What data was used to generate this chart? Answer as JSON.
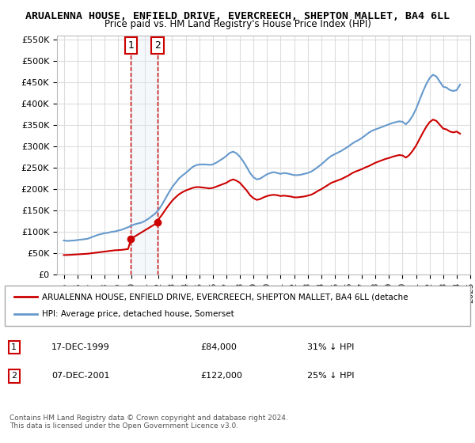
{
  "title": "ARUALENNA HOUSE, ENFIELD DRIVE, EVERCREECH, SHEPTON MALLET, BA4 6LL",
  "subtitle": "Price paid vs. HM Land Registry's House Price Index (HPI)",
  "ylim": [
    0,
    560000
  ],
  "yticks": [
    0,
    50000,
    100000,
    150000,
    200000,
    250000,
    300000,
    350000,
    400000,
    450000,
    500000,
    550000
  ],
  "ytick_labels": [
    "£0",
    "£50K",
    "£100K",
    "£150K",
    "£200K",
    "£250K",
    "£300K",
    "£350K",
    "£400K",
    "£450K",
    "£500K",
    "£550K"
  ],
  "legend_label_red": "ARUALENNA HOUSE, ENFIELD DRIVE, EVERCREECH, SHEPTON MALLET, BA4 6LL (detache",
  "legend_label_blue": "HPI: Average price, detached house, Somerset",
  "footer_text": "Contains HM Land Registry data © Crown copyright and database right 2024.\nThis data is licensed under the Open Government Licence v3.0.",
  "transaction1_label": "1",
  "transaction1_date": "17-DEC-1999",
  "transaction1_price": "£84,000",
  "transaction1_hpi": "31% ↓ HPI",
  "transaction1_year": 1999.96,
  "transaction1_value": 84000,
  "transaction2_label": "2",
  "transaction2_date": "07-DEC-2001",
  "transaction2_price": "£122,000",
  "transaction2_hpi": "25% ↓ HPI",
  "transaction2_year": 2001.93,
  "transaction2_value": 122000,
  "red_color": "#cc0000",
  "blue_color": "#6699cc",
  "box_fill": "#dde8f5",
  "box_border": "#cc0000",
  "grid_color": "#dddddd",
  "hpi_data": {
    "years": [
      1995.0,
      1995.25,
      1995.5,
      1995.75,
      1996.0,
      1996.25,
      1996.5,
      1996.75,
      1997.0,
      1997.25,
      1997.5,
      1997.75,
      1998.0,
      1998.25,
      1998.5,
      1998.75,
      1999.0,
      1999.25,
      1999.5,
      1999.75,
      2000.0,
      2000.25,
      2000.5,
      2000.75,
      2001.0,
      2001.25,
      2001.5,
      2001.75,
      2002.0,
      2002.25,
      2002.5,
      2002.75,
      2003.0,
      2003.25,
      2003.5,
      2003.75,
      2004.0,
      2004.25,
      2004.5,
      2004.75,
      2005.0,
      2005.25,
      2005.5,
      2005.75,
      2006.0,
      2006.25,
      2006.5,
      2006.75,
      2007.0,
      2007.25,
      2007.5,
      2007.75,
      2008.0,
      2008.25,
      2008.5,
      2008.75,
      2009.0,
      2009.25,
      2009.5,
      2009.75,
      2010.0,
      2010.25,
      2010.5,
      2010.75,
      2011.0,
      2011.25,
      2011.5,
      2011.75,
      2012.0,
      2012.25,
      2012.5,
      2012.75,
      2013.0,
      2013.25,
      2013.5,
      2013.75,
      2014.0,
      2014.25,
      2014.5,
      2014.75,
      2015.0,
      2015.25,
      2015.5,
      2015.75,
      2016.0,
      2016.25,
      2016.5,
      2016.75,
      2017.0,
      2017.25,
      2017.5,
      2017.75,
      2018.0,
      2018.25,
      2018.5,
      2018.75,
      2019.0,
      2019.25,
      2019.5,
      2019.75,
      2020.0,
      2020.25,
      2020.5,
      2020.75,
      2021.0,
      2021.25,
      2021.5,
      2021.75,
      2022.0,
      2022.25,
      2022.5,
      2022.75,
      2023.0,
      2023.25,
      2023.5,
      2023.75,
      2024.0,
      2024.25
    ],
    "values": [
      80000,
      79000,
      79500,
      80000,
      81000,
      82000,
      83000,
      84000,
      87000,
      90000,
      93000,
      95000,
      97000,
      98000,
      100000,
      101000,
      103000,
      105000,
      108000,
      111000,
      115000,
      118000,
      120000,
      122000,
      126000,
      131000,
      137000,
      143000,
      152000,
      164000,
      178000,
      192000,
      205000,
      215000,
      225000,
      232000,
      238000,
      245000,
      252000,
      256000,
      258000,
      258000,
      258000,
      257000,
      258000,
      262000,
      267000,
      272000,
      278000,
      285000,
      288000,
      284000,
      276000,
      265000,
      252000,
      238000,
      228000,
      223000,
      225000,
      230000,
      235000,
      238000,
      240000,
      238000,
      236000,
      238000,
      237000,
      235000,
      233000,
      233000,
      234000,
      236000,
      238000,
      241000,
      246000,
      252000,
      258000,
      265000,
      272000,
      278000,
      282000,
      286000,
      290000,
      295000,
      300000,
      306000,
      311000,
      315000,
      320000,
      326000,
      332000,
      337000,
      340000,
      343000,
      346000,
      349000,
      352000,
      355000,
      357000,
      359000,
      358000,
      352000,
      360000,
      372000,
      388000,
      408000,
      428000,
      446000,
      460000,
      468000,
      464000,
      452000,
      440000,
      438000,
      432000,
      430000,
      432000,
      445000
    ]
  },
  "red_data": {
    "years": [
      1995.0,
      1995.25,
      1995.5,
      1995.75,
      1996.0,
      1996.25,
      1996.5,
      1996.75,
      1997.0,
      1997.25,
      1997.5,
      1997.75,
      1998.0,
      1998.25,
      1998.5,
      1998.75,
      1999.0,
      1999.25,
      1999.5,
      1999.75,
      1999.96,
      2001.93,
      2002.0,
      2002.25,
      2002.5,
      2002.75,
      2003.0,
      2003.25,
      2003.5,
      2003.75,
      2004.0,
      2004.25,
      2004.5,
      2004.75,
      2005.0,
      2005.25,
      2005.5,
      2005.75,
      2006.0,
      2006.25,
      2006.5,
      2006.75,
      2007.0,
      2007.25,
      2007.5,
      2007.75,
      2008.0,
      2008.25,
      2008.5,
      2008.75,
      2009.0,
      2009.25,
      2009.5,
      2009.75,
      2010.0,
      2010.25,
      2010.5,
      2010.75,
      2011.0,
      2011.25,
      2011.5,
      2011.75,
      2012.0,
      2012.25,
      2012.5,
      2012.75,
      2013.0,
      2013.25,
      2013.5,
      2013.75,
      2014.0,
      2014.25,
      2014.5,
      2014.75,
      2015.0,
      2015.25,
      2015.5,
      2015.75,
      2016.0,
      2016.25,
      2016.5,
      2016.75,
      2017.0,
      2017.25,
      2017.5,
      2017.75,
      2018.0,
      2018.25,
      2018.5,
      2018.75,
      2019.0,
      2019.25,
      2019.5,
      2019.75,
      2020.0,
      2020.25,
      2020.5,
      2020.75,
      2021.0,
      2021.25,
      2021.5,
      2021.75,
      2022.0,
      2022.25,
      2022.5,
      2022.75,
      2023.0,
      2023.25,
      2023.5,
      2023.75,
      2024.0,
      2024.25
    ],
    "values": [
      46000,
      46000,
      46500,
      47000,
      47500,
      48000,
      48500,
      49000,
      50000,
      51000,
      52000,
      53000,
      54000,
      55000,
      56000,
      57000,
      57500,
      58000,
      59000,
      60000,
      84000,
      122000,
      130000,
      140000,
      152000,
      163000,
      173000,
      181000,
      188000,
      193000,
      197000,
      200000,
      203000,
      205000,
      205000,
      204000,
      203000,
      202000,
      203000,
      206000,
      209000,
      212000,
      215000,
      220000,
      223000,
      220000,
      215000,
      206000,
      197000,
      186000,
      179000,
      175000,
      177000,
      181000,
      184000,
      186000,
      187000,
      186000,
      184000,
      185000,
      184000,
      183000,
      181000,
      181000,
      182000,
      183000,
      185000,
      187000,
      191000,
      196000,
      200000,
      205000,
      210000,
      215000,
      218000,
      221000,
      224000,
      228000,
      232000,
      237000,
      241000,
      244000,
      247000,
      251000,
      254000,
      258000,
      262000,
      265000,
      268000,
      271000,
      273000,
      276000,
      278000,
      280000,
      279000,
      274000,
      280000,
      290000,
      302000,
      317000,
      332000,
      346000,
      357000,
      363000,
      360000,
      351000,
      342000,
      340000,
      335000,
      333000,
      335000,
      330000
    ]
  },
  "xtick_years": [
    1995,
    1996,
    1997,
    1998,
    1999,
    2000,
    2001,
    2002,
    2003,
    2004,
    2005,
    2006,
    2007,
    2008,
    2009,
    2010,
    2011,
    2012,
    2013,
    2014,
    2015,
    2016,
    2017,
    2018,
    2019,
    2020,
    2021,
    2022,
    2023,
    2024,
    2025
  ]
}
